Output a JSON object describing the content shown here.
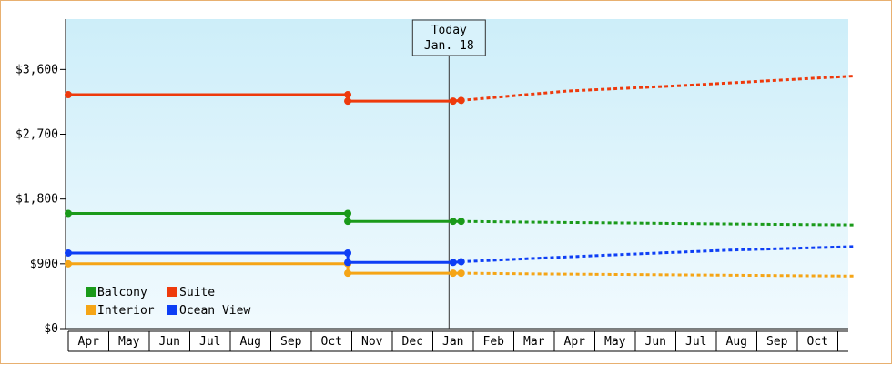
{
  "chart_data": {
    "type": "line",
    "title": "",
    "xlabel": "",
    "ylabel": "",
    "ylim": [
      0,
      4300
    ],
    "yticks": [
      0,
      900,
      1800,
      2700,
      3600
    ],
    "ytick_labels": [
      "$0",
      "$900",
      "$1,800",
      "$2,700",
      "$3,600"
    ],
    "months": [
      "Apr",
      "May",
      "Jun",
      "Jul",
      "Aug",
      "Sep",
      "Oct",
      "Nov",
      "Dec",
      "Jan",
      "Feb",
      "Mar",
      "Apr",
      "May",
      "Jun",
      "Jul",
      "Aug",
      "Sep",
      "Oct"
    ],
    "grid": false,
    "legend_position": "bottom-left",
    "today_marker": {
      "line1": "Today",
      "line2": "Jan. 18",
      "x": 9.4
    },
    "series": [
      {
        "name": "Balcony",
        "color": "#1a9a1a",
        "actual": [
          [
            0,
            1600
          ],
          [
            6.9,
            1600
          ],
          [
            6.9,
            1490
          ],
          [
            9.5,
            1490
          ],
          [
            9.7,
            1490
          ]
        ],
        "markers": [
          [
            0,
            1600
          ],
          [
            6.9,
            1600
          ],
          [
            6.9,
            1490
          ],
          [
            9.5,
            1490
          ],
          [
            9.7,
            1490
          ]
        ],
        "forecast": [
          [
            9.7,
            1490
          ],
          [
            11.3,
            1480
          ],
          [
            16.9,
            1450
          ],
          [
            19.4,
            1440
          ]
        ]
      },
      {
        "name": "Suite",
        "color": "#ee3a0c",
        "actual": [
          [
            0,
            3250
          ],
          [
            6.9,
            3250
          ],
          [
            6.9,
            3160
          ],
          [
            9.5,
            3160
          ],
          [
            9.7,
            3170
          ]
        ],
        "markers": [
          [
            0,
            3250
          ],
          [
            6.9,
            3250
          ],
          [
            6.9,
            3160
          ],
          [
            9.5,
            3160
          ],
          [
            9.7,
            3170
          ]
        ],
        "forecast": [
          [
            9.7,
            3170
          ],
          [
            12.3,
            3300
          ],
          [
            15.3,
            3380
          ],
          [
            19.4,
            3510
          ]
        ]
      },
      {
        "name": "Interior",
        "color": "#f5a516",
        "actual": [
          [
            0,
            900
          ],
          [
            6.9,
            900
          ],
          [
            6.9,
            770
          ],
          [
            9.5,
            770
          ],
          [
            9.7,
            770
          ]
        ],
        "markers": [
          [
            0,
            900
          ],
          [
            6.9,
            900
          ],
          [
            6.9,
            770
          ],
          [
            9.5,
            770
          ],
          [
            9.7,
            770
          ]
        ],
        "forecast": [
          [
            9.7,
            770
          ],
          [
            11.6,
            760
          ],
          [
            16.9,
            740
          ],
          [
            19.4,
            730
          ]
        ]
      },
      {
        "name": "Ocean View",
        "color": "#0d3ef5",
        "actual": [
          [
            0,
            1050
          ],
          [
            6.9,
            1050
          ],
          [
            6.9,
            920
          ],
          [
            9.5,
            920
          ],
          [
            9.7,
            930
          ]
        ],
        "markers": [
          [
            0,
            1050
          ],
          [
            6.9,
            1050
          ],
          [
            6.9,
            920
          ],
          [
            9.5,
            920
          ],
          [
            9.7,
            930
          ]
        ],
        "forecast": [
          [
            9.7,
            930
          ],
          [
            13.3,
            1020
          ],
          [
            16.3,
            1090
          ],
          [
            19.4,
            1140
          ]
        ]
      }
    ]
  }
}
